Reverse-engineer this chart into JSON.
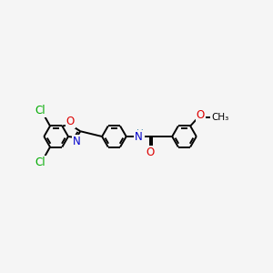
{
  "bg_color": "#f5f5f5",
  "bond_color": "#000000",
  "bond_width": 1.4,
  "figsize": [
    3.0,
    3.0
  ],
  "dpi": 100,
  "xlim": [
    -1.0,
    10.5
  ],
  "ylim": [
    -2.5,
    2.5
  ],
  "cl_color": "#00aa00",
  "o_color": "#dd0000",
  "n_color": "#0000cc",
  "nh_color": "#4488aa",
  "c_color": "#000000"
}
